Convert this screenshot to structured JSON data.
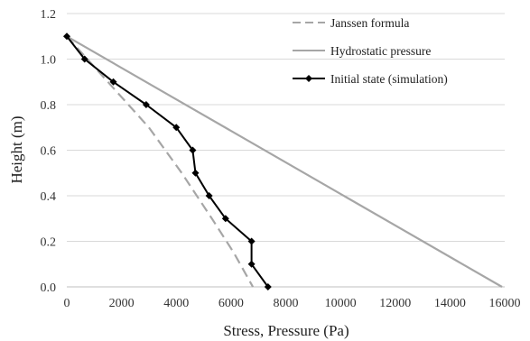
{
  "chart_data": {
    "type": "line",
    "title": "",
    "xlabel": "Stress, Pressure (Pa)",
    "ylabel": "Height (m)",
    "xlim": [
      0,
      16000
    ],
    "ylim": [
      0,
      1.2
    ],
    "x_ticks": [
      "0",
      "2000",
      "4000",
      "6000",
      "8000",
      "10000",
      "12000",
      "14000",
      "16000"
    ],
    "y_ticks": [
      "0.0",
      "0.2",
      "0.4",
      "0.6",
      "0.8",
      "1.0",
      "1.2"
    ],
    "grid": "horizontal",
    "legend_position": "top-right",
    "series": [
      {
        "name": "Janssen formula",
        "style": "dashed",
        "color": "#a6a6a6",
        "markers": false,
        "points": [
          [
            0,
            1.1
          ],
          [
            1500,
            0.9
          ],
          [
            3000,
            0.7
          ],
          [
            4200,
            0.5
          ],
          [
            5300,
            0.3
          ],
          [
            6100,
            0.15
          ],
          [
            6800,
            0.0
          ]
        ]
      },
      {
        "name": "Hydrostatic pressure",
        "style": "solid",
        "color": "#a6a6a6",
        "markers": false,
        "points": [
          [
            0,
            1.1
          ],
          [
            15900,
            0.0
          ]
        ]
      },
      {
        "name": "Initial state (simulation)",
        "style": "solid",
        "color": "#000000",
        "markers": true,
        "points": [
          [
            0,
            1.1
          ],
          [
            650,
            1.0
          ],
          [
            1700,
            0.9
          ],
          [
            2900,
            0.8
          ],
          [
            4000,
            0.7
          ],
          [
            4600,
            0.6
          ],
          [
            4700,
            0.5
          ],
          [
            5200,
            0.4
          ],
          [
            5800,
            0.3
          ],
          [
            6750,
            0.2
          ],
          [
            6750,
            0.1
          ],
          [
            7350,
            0.0
          ]
        ]
      }
    ]
  }
}
